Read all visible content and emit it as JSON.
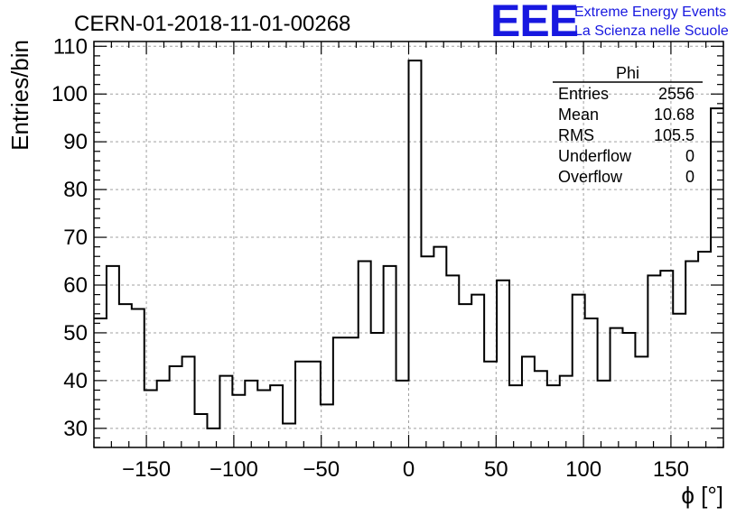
{
  "chart_data": {
    "type": "bar",
    "title": "CERN-01-2018-11-01-00268",
    "xlabel": "ϕ [°]",
    "ylabel": "Entries/bin",
    "xlim": [
      -180,
      180
    ],
    "ylim": [
      26,
      111
    ],
    "bin_width": 7.2,
    "x_ticks": [
      -150,
      -100,
      -50,
      0,
      50,
      100,
      150
    ],
    "y_ticks": [
      30,
      40,
      50,
      60,
      70,
      80,
      90,
      100,
      110
    ],
    "grid": true,
    "values": [
      53,
      64,
      56,
      55,
      38,
      40,
      43,
      45,
      33,
      30,
      41,
      37,
      40,
      38,
      39,
      31,
      44,
      44,
      35,
      49,
      49,
      65,
      50,
      64,
      40,
      107,
      66,
      68,
      62,
      56,
      58,
      44,
      61,
      39,
      45,
      42,
      39,
      41,
      58,
      53,
      40,
      51,
      50,
      45,
      62,
      63,
      54,
      65,
      67,
      97
    ],
    "stats": {
      "name": "Phi",
      "rows": [
        {
          "label": "Entries",
          "value": "2556"
        },
        {
          "label": "Mean",
          "value": "10.68"
        },
        {
          "label": "RMS",
          "value": "105.5"
        },
        {
          "label": "Underflow",
          "value": "0"
        },
        {
          "label": "Overflow",
          "value": "0"
        }
      ]
    }
  },
  "logo": {
    "mark": "EEE",
    "line1": "Extreme Energy Events",
    "line2": "La Scienza nelle Scuole",
    "color": "#1818e0"
  }
}
